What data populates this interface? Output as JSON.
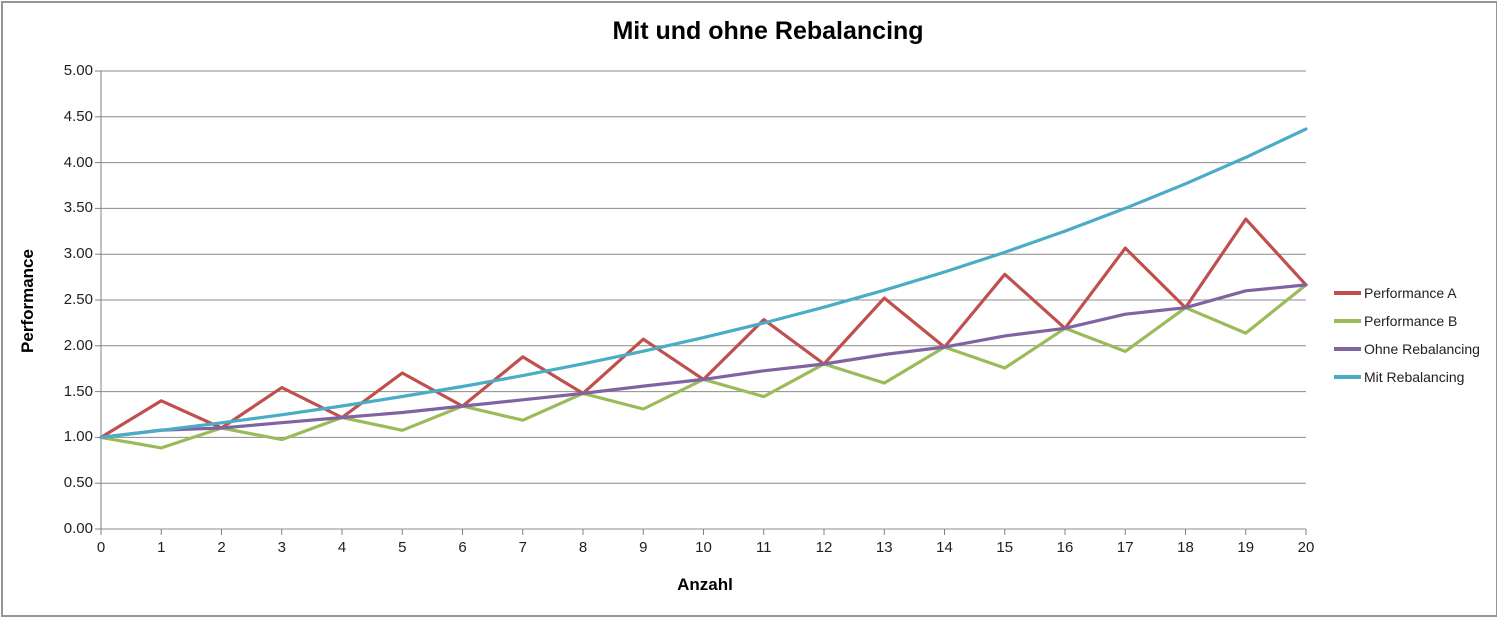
{
  "chart_data": {
    "type": "line",
    "title": "Mit und ohne Rebalancing",
    "xlabel": "Anzahl",
    "ylabel": "Performance",
    "xlim": [
      0,
      20
    ],
    "ylim": [
      0,
      5
    ],
    "xtick_step": 1,
    "ytick_step": 0.5,
    "grid": "horizontal",
    "legend_position": "right-middle",
    "x_tick_labels": [
      "0",
      "1",
      "2",
      "3",
      "4",
      "5",
      "6",
      "7",
      "8",
      "9",
      "10",
      "11",
      "12",
      "13",
      "14",
      "15",
      "16",
      "17",
      "18",
      "19",
      "20"
    ],
    "y_tick_labels": [
      "0.00",
      "0.50",
      "1.00",
      "1.50",
      "2.00",
      "2.50",
      "3.00",
      "3.50",
      "4.00",
      "4.50",
      "5.00"
    ],
    "x": [
      0,
      1,
      2,
      3,
      4,
      5,
      6,
      7,
      8,
      9,
      10,
      11,
      12,
      13,
      14,
      15,
      16,
      17,
      18,
      19,
      20
    ],
    "series": [
      {
        "name": "Performance A",
        "color": "#C0504D",
        "values": [
          1.0,
          1.4,
          1.103,
          1.544,
          1.217,
          1.703,
          1.342,
          1.879,
          1.48,
          2.072,
          1.633,
          2.286,
          1.801,
          2.521,
          1.986,
          2.781,
          2.191,
          3.067,
          2.416,
          3.383,
          2.665
        ]
      },
      {
        "name": "Performance B",
        "color": "#9BBB59",
        "values": [
          1.0,
          0.885,
          1.103,
          0.976,
          1.217,
          1.077,
          1.342,
          1.188,
          1.48,
          1.31,
          1.633,
          1.445,
          1.801,
          1.594,
          1.986,
          1.758,
          2.191,
          1.939,
          2.416,
          2.139,
          2.665
        ]
      },
      {
        "name": "Ohne Rebalancing",
        "color": "#8064A2",
        "values": [
          1.0,
          1.08,
          1.103,
          1.16,
          1.217,
          1.272,
          1.342,
          1.411,
          1.48,
          1.56,
          1.633,
          1.727,
          1.801,
          1.905,
          1.986,
          2.108,
          2.191,
          2.345,
          2.416,
          2.6,
          2.665
        ]
      },
      {
        "name": "Mit Rebalancing",
        "color": "#4BACC6",
        "values": [
          1.0,
          1.077,
          1.159,
          1.247,
          1.343,
          1.446,
          1.556,
          1.675,
          1.803,
          1.941,
          2.09,
          2.249,
          2.421,
          2.607,
          2.806,
          3.021,
          3.252,
          3.501,
          3.769,
          4.057,
          4.367
        ]
      }
    ]
  },
  "colors": {
    "background": "#FFFFFF",
    "frame_border": "#969696",
    "gridline": "#8C8C8C",
    "axis_line": "#808080",
    "tick_text": "#1F1F1F",
    "title_text": "#000000"
  }
}
